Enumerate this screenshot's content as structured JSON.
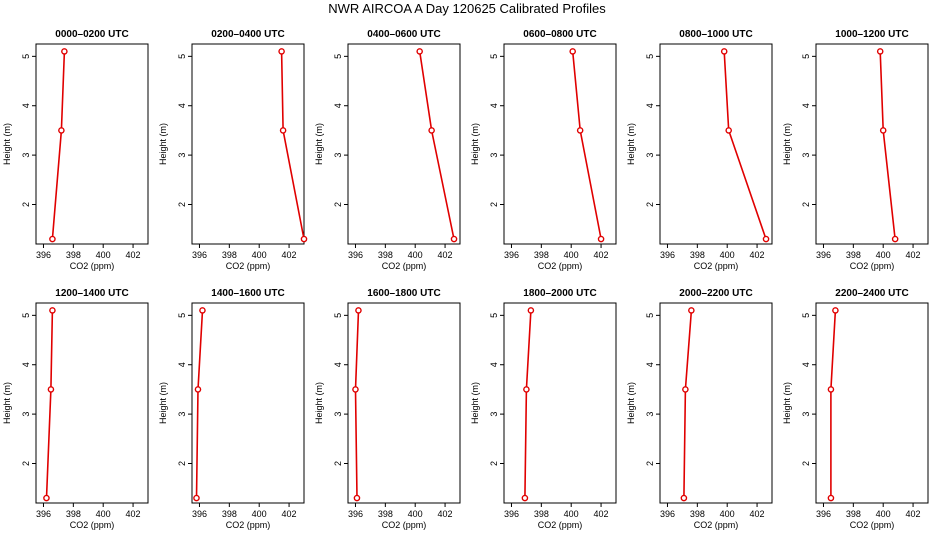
{
  "figure": {
    "title": "NWR AIRCOA A  Day 120625  Calibrated Profiles",
    "colors": {
      "line": "#e00000",
      "axis": "#000000",
      "background": "#ffffff"
    }
  },
  "chart_data": [
    {
      "type": "line",
      "title": "0000–0200 UTC",
      "xlabel": "CO2 (ppm)",
      "ylabel": "Height (m)",
      "x": [
        396.6,
        397.2,
        397.4
      ],
      "y": [
        1.3,
        3.5,
        5.1
      ],
      "xlim": [
        395.5,
        403.0
      ],
      "ylim": [
        1.2,
        5.25
      ],
      "xticks": [
        396,
        398,
        400,
        402
      ],
      "yticks": [
        2,
        3,
        4,
        5
      ],
      "grid": false
    },
    {
      "type": "line",
      "title": "0200–0400 UTC",
      "xlabel": "CO2 (ppm)",
      "ylabel": "Height (m)",
      "x": [
        403.0,
        401.6,
        401.5
      ],
      "y": [
        1.3,
        3.5,
        5.1
      ],
      "xlim": [
        395.5,
        403.0
      ],
      "ylim": [
        1.2,
        5.25
      ],
      "xticks": [
        396,
        398,
        400,
        402
      ],
      "yticks": [
        2,
        3,
        4,
        5
      ],
      "grid": false
    },
    {
      "type": "line",
      "title": "0400–0600 UTC",
      "xlabel": "CO2 (ppm)",
      "ylabel": "Height (m)",
      "x": [
        402.6,
        401.1,
        400.3
      ],
      "y": [
        1.3,
        3.5,
        5.1
      ],
      "xlim": [
        395.5,
        403.0
      ],
      "ylim": [
        1.2,
        5.25
      ],
      "xticks": [
        396,
        398,
        400,
        402
      ],
      "yticks": [
        2,
        3,
        4,
        5
      ],
      "grid": false
    },
    {
      "type": "line",
      "title": "0600–0800 UTC",
      "xlabel": "CO2 (ppm)",
      "ylabel": "Height (m)",
      "x": [
        402.0,
        400.6,
        400.1
      ],
      "y": [
        1.3,
        3.5,
        5.1
      ],
      "xlim": [
        395.5,
        403.0
      ],
      "ylim": [
        1.2,
        5.25
      ],
      "xticks": [
        396,
        398,
        400,
        402
      ],
      "yticks": [
        2,
        3,
        4,
        5
      ],
      "grid": false
    },
    {
      "type": "line",
      "title": "0800–1000 UTC",
      "xlabel": "CO2 (ppm)",
      "ylabel": "Height (m)",
      "x": [
        402.6,
        400.1,
        399.8
      ],
      "y": [
        1.3,
        3.5,
        5.1
      ],
      "xlim": [
        395.5,
        403.0
      ],
      "ylim": [
        1.2,
        5.25
      ],
      "xticks": [
        396,
        398,
        400,
        402
      ],
      "yticks": [
        2,
        3,
        4,
        5
      ],
      "grid": false
    },
    {
      "type": "line",
      "title": "1000–1200 UTC",
      "xlabel": "CO2 (ppm)",
      "ylabel": "Height (m)",
      "x": [
        400.8,
        400.0,
        399.8
      ],
      "y": [
        1.3,
        3.5,
        5.1
      ],
      "xlim": [
        395.5,
        403.0
      ],
      "ylim": [
        1.2,
        5.25
      ],
      "xticks": [
        396,
        398,
        400,
        402
      ],
      "yticks": [
        2,
        3,
        4,
        5
      ],
      "grid": false
    },
    {
      "type": "line",
      "title": "1200–1400 UTC",
      "xlabel": "CO2 (ppm)",
      "ylabel": "Height (m)",
      "x": [
        396.2,
        396.5,
        396.6
      ],
      "y": [
        1.3,
        3.5,
        5.1
      ],
      "xlim": [
        395.5,
        403.0
      ],
      "ylim": [
        1.2,
        5.25
      ],
      "xticks": [
        396,
        398,
        400,
        402
      ],
      "yticks": [
        2,
        3,
        4,
        5
      ],
      "grid": false
    },
    {
      "type": "line",
      "title": "1400–1600 UTC",
      "xlabel": "CO2 (ppm)",
      "ylabel": "Height (m)",
      "x": [
        395.8,
        395.9,
        396.2
      ],
      "y": [
        1.3,
        3.5,
        5.1
      ],
      "xlim": [
        395.5,
        403.0
      ],
      "ylim": [
        1.2,
        5.25
      ],
      "xticks": [
        396,
        398,
        400,
        402
      ],
      "yticks": [
        2,
        3,
        4,
        5
      ],
      "grid": false
    },
    {
      "type": "line",
      "title": "1600–1800 UTC",
      "xlabel": "CO2 (ppm)",
      "ylabel": "Height (m)",
      "x": [
        396.1,
        396.0,
        396.2
      ],
      "y": [
        1.3,
        3.5,
        5.1
      ],
      "xlim": [
        395.5,
        403.0
      ],
      "ylim": [
        1.2,
        5.25
      ],
      "xticks": [
        396,
        398,
        400,
        402
      ],
      "yticks": [
        2,
        3,
        4,
        5
      ],
      "grid": false
    },
    {
      "type": "line",
      "title": "1800–2000 UTC",
      "xlabel": "CO2 (ppm)",
      "ylabel": "Height (m)",
      "x": [
        396.9,
        397.0,
        397.3
      ],
      "y": [
        1.3,
        3.5,
        5.1
      ],
      "xlim": [
        395.5,
        403.0
      ],
      "ylim": [
        1.2,
        5.25
      ],
      "xticks": [
        396,
        398,
        400,
        402
      ],
      "yticks": [
        2,
        3,
        4,
        5
      ],
      "grid": false
    },
    {
      "type": "line",
      "title": "2000–2200 UTC",
      "xlabel": "CO2 (ppm)",
      "ylabel": "Height (m)",
      "x": [
        397.1,
        397.2,
        397.6
      ],
      "y": [
        1.3,
        3.5,
        5.1
      ],
      "xlim": [
        395.5,
        403.0
      ],
      "ylim": [
        1.2,
        5.25
      ],
      "xticks": [
        396,
        398,
        400,
        402
      ],
      "yticks": [
        2,
        3,
        4,
        5
      ],
      "grid": false
    },
    {
      "type": "line",
      "title": "2200–2400 UTC",
      "xlabel": "CO2 (ppm)",
      "ylabel": "Height (m)",
      "x": [
        396.5,
        396.5,
        396.8
      ],
      "y": [
        1.3,
        3.5,
        5.1
      ],
      "xlim": [
        395.5,
        403.0
      ],
      "ylim": [
        1.2,
        5.25
      ],
      "xticks": [
        396,
        398,
        400,
        402
      ],
      "yticks": [
        2,
        3,
        4,
        5
      ],
      "grid": false
    }
  ]
}
